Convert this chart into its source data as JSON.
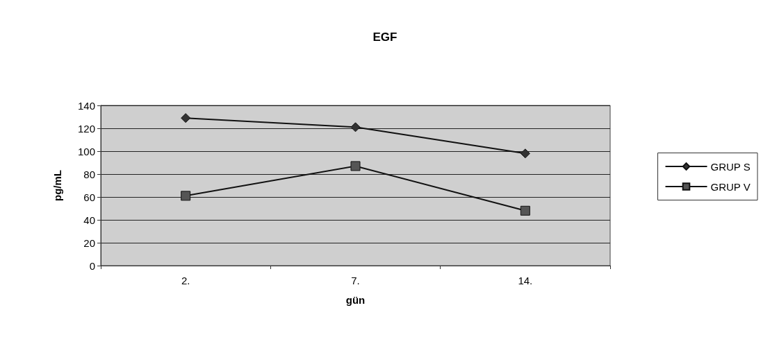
{
  "chart_data": {
    "type": "line",
    "title": "EGF",
    "xlabel": "gün",
    "ylabel": "pg/mL",
    "categories": [
      "2.",
      "7.",
      "14."
    ],
    "series": [
      {
        "name": "GRUP S",
        "color": "#333333",
        "values": [
          129,
          121,
          98
        ],
        "marker": "diamond"
      },
      {
        "name": "GRUP V",
        "color": "#555555",
        "values": [
          61,
          87,
          48
        ],
        "marker": "square"
      }
    ],
    "ylim": [
      0,
      140
    ],
    "yticks": [
      0,
      20,
      40,
      60,
      80,
      100,
      120,
      140
    ],
    "grid": "y",
    "legend": "right",
    "line_style": "solid"
  }
}
